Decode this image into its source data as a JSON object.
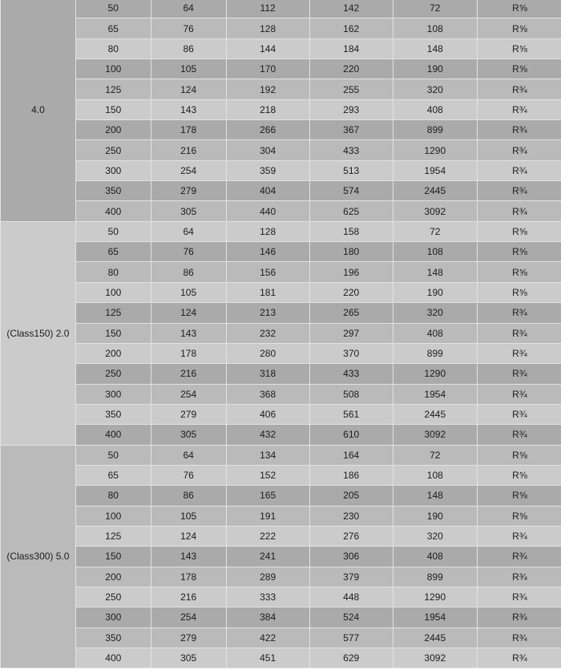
{
  "groups": [
    {
      "label": "4.0",
      "rows": [
        [
          "50",
          "64",
          "112",
          "142",
          "72",
          "R⅝"
        ],
        [
          "65",
          "76",
          "128",
          "162",
          "108",
          "R⅝"
        ],
        [
          "80",
          "86",
          "144",
          "184",
          "148",
          "R⅝"
        ],
        [
          "100",
          "105",
          "170",
          "220",
          "190",
          "R⅝"
        ],
        [
          "125",
          "124",
          "192",
          "255",
          "320",
          "R¾"
        ],
        [
          "150",
          "143",
          "218",
          "293",
          "408",
          "R¾"
        ],
        [
          "200",
          "178",
          "266",
          "367",
          "899",
          "R¾"
        ],
        [
          "250",
          "216",
          "304",
          "433",
          "1290",
          "R¾"
        ],
        [
          "300",
          "254",
          "359",
          "513",
          "1954",
          "R¾"
        ],
        [
          "350",
          "279",
          "404",
          "574",
          "2445",
          "R¾"
        ],
        [
          "400",
          "305",
          "440",
          "625",
          "3092",
          "R¾"
        ]
      ]
    },
    {
      "label": "(Class150) 2.0",
      "rows": [
        [
          "50",
          "64",
          "128",
          "158",
          "72",
          "R⅝"
        ],
        [
          "65",
          "76",
          "146",
          "180",
          "108",
          "R⅝"
        ],
        [
          "80",
          "86",
          "156",
          "196",
          "148",
          "R⅝"
        ],
        [
          "100",
          "105",
          "181",
          "220",
          "190",
          "R⅝"
        ],
        [
          "125",
          "124",
          "213",
          "265",
          "320",
          "R¾"
        ],
        [
          "150",
          "143",
          "232",
          "297",
          "408",
          "R¾"
        ],
        [
          "200",
          "178",
          "280",
          "370",
          "899",
          "R¾"
        ],
        [
          "250",
          "216",
          "318",
          "433",
          "1290",
          "R¾"
        ],
        [
          "300",
          "254",
          "368",
          "508",
          "1954",
          "R¾"
        ],
        [
          "350",
          "279",
          "406",
          "561",
          "2445",
          "R¾"
        ],
        [
          "400",
          "305",
          "432",
          "610",
          "3092",
          "R¾"
        ]
      ]
    },
    {
      "label": "(Class300) 5.0",
      "rows": [
        [
          "50",
          "64",
          "134",
          "164",
          "72",
          "R⅝"
        ],
        [
          "65",
          "76",
          "152",
          "186",
          "108",
          "R⅝"
        ],
        [
          "80",
          "86",
          "165",
          "205",
          "148",
          "R⅝"
        ],
        [
          "100",
          "105",
          "191",
          "230",
          "190",
          "R⅝"
        ],
        [
          "125",
          "124",
          "222",
          "276",
          "320",
          "R¾"
        ],
        [
          "150",
          "143",
          "241",
          "306",
          "408",
          "R¾"
        ],
        [
          "200",
          "178",
          "289",
          "379",
          "899",
          "R¾"
        ],
        [
          "250",
          "216",
          "333",
          "448",
          "1290",
          "R¾"
        ],
        [
          "300",
          "254",
          "384",
          "524",
          "1954",
          "R¾"
        ],
        [
          "350",
          "279",
          "422",
          "577",
          "2445",
          "R¾"
        ],
        [
          "400",
          "305",
          "451",
          "629",
          "3092",
          "R¾"
        ]
      ]
    }
  ]
}
